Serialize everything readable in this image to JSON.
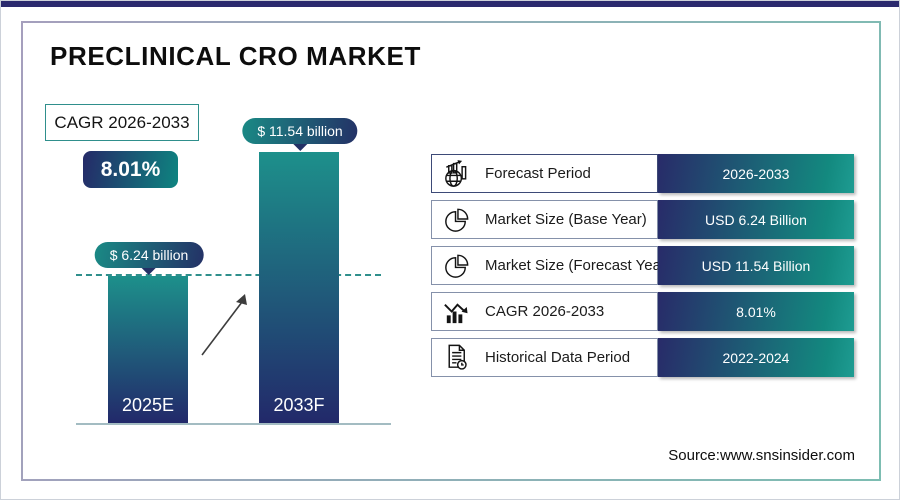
{
  "header": {
    "title": "PRECLINICAL CRO MARKET"
  },
  "cagr": {
    "label": "CAGR 2026-2033",
    "value": "8.01%"
  },
  "chart_data": {
    "type": "bar",
    "title": "PRECLINICAL CRO MARKET",
    "categories": [
      "2025E",
      "2033F"
    ],
    "values": [
      6.24,
      11.54
    ],
    "unit": "USD Billion",
    "bar_value_labels": [
      "$ 6.24 billion",
      "$ 11.54 billion"
    ],
    "xlabel": "",
    "ylabel": "",
    "ylim": [
      0,
      12
    ],
    "grid": false,
    "legend": false,
    "reference_line_y": 6.24,
    "annotations": [
      "growth arrow between bars",
      "dashed reference line at 2025E level"
    ]
  },
  "table": {
    "rows": [
      {
        "icon": "globe-trend-icon",
        "label": "Forecast Period",
        "value": "2026-2033"
      },
      {
        "icon": "pie-chart-icon",
        "label": "Market Size (Base Year)",
        "value": "USD 6.24 Billion"
      },
      {
        "icon": "pie-chart-icon",
        "label": "Market Size (Forecast Year)",
        "value": "USD 11.54 Billion"
      },
      {
        "icon": "bar-trend-icon",
        "label": "CAGR 2026-2033",
        "value": "8.01%"
      },
      {
        "icon": "document-clock-icon",
        "label": "Historical Data Period",
        "value": "2022-2024"
      }
    ]
  },
  "footer": {
    "source": "Source:www.snsinsider.com"
  },
  "colors": {
    "navy": "#252a68",
    "teal": "#0e8480",
    "bar_teal": "#1d908b",
    "top_bar": "#2b2a6e"
  }
}
